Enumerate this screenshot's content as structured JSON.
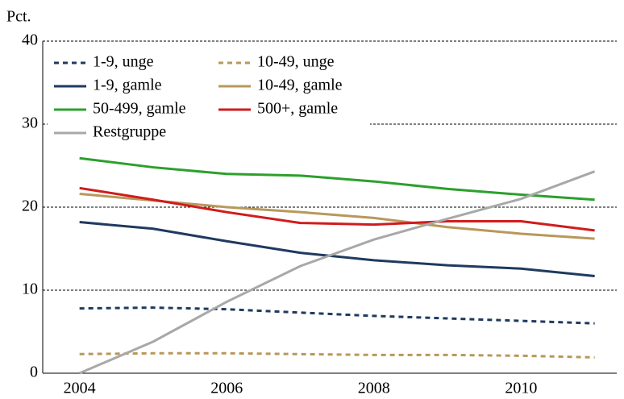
{
  "chart_data": {
    "type": "line",
    "y_label": "Pct.",
    "x": [
      2004,
      2005,
      2006,
      2007,
      2008,
      2009,
      2010,
      2011
    ],
    "xlim": [
      2003.5,
      2011.3
    ],
    "xticks": [
      2004,
      2006,
      2008,
      2010
    ],
    "ylim": [
      0,
      40
    ],
    "yticks": [
      0,
      10,
      20,
      30,
      40
    ],
    "grid": true,
    "legend": "upper-left",
    "series": [
      {
        "name": "1-9, unge",
        "color": "#1f3a5f",
        "dashed": true,
        "values": [
          7.8,
          7.9,
          7.7,
          7.3,
          6.9,
          6.6,
          6.3,
          6.0
        ]
      },
      {
        "name": "10-49, unge",
        "color": "#b8985a",
        "dashed": true,
        "values": [
          2.3,
          2.4,
          2.4,
          2.3,
          2.2,
          2.2,
          2.1,
          1.9
        ]
      },
      {
        "name": "1-9, gamle",
        "color": "#1f3a5f",
        "dashed": false,
        "values": [
          18.2,
          17.4,
          15.9,
          14.5,
          13.6,
          13.0,
          12.6,
          11.7
        ]
      },
      {
        "name": "10-49, gamle",
        "color": "#b8985a",
        "dashed": false,
        "values": [
          21.6,
          20.8,
          20.0,
          19.4,
          18.7,
          17.6,
          16.8,
          16.2
        ]
      },
      {
        "name": "50-499, gamle",
        "color": "#2ca02c",
        "dashed": false,
        "values": [
          25.9,
          24.8,
          24.0,
          23.8,
          23.1,
          22.2,
          21.5,
          20.9
        ]
      },
      {
        "name": "500+, gamle",
        "color": "#d01c1c",
        "dashed": false,
        "values": [
          22.3,
          20.9,
          19.4,
          18.1,
          17.9,
          18.3,
          18.3,
          17.2
        ]
      },
      {
        "name": "Restgruppe",
        "color": "#a8a8a8",
        "dashed": false,
        "values": [
          0,
          3.8,
          8.6,
          12.9,
          16.1,
          18.6,
          21.0,
          24.3
        ]
      }
    ]
  }
}
